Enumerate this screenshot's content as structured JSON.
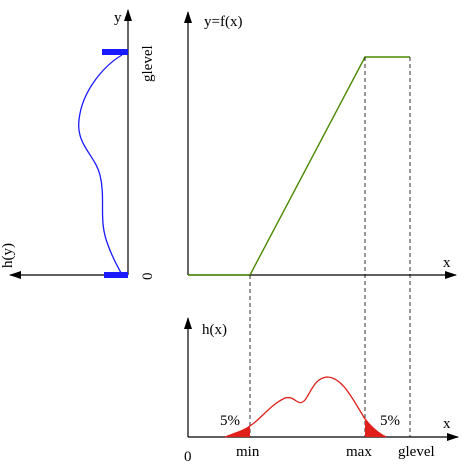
{
  "left_panel": {
    "axis_label_y": "y",
    "top_label": "glevel",
    "bottom_label": "0",
    "axis_label_h": "h(y)"
  },
  "top_panel": {
    "title": "y=f(x)",
    "axis_label_x": "x"
  },
  "bottom_panel": {
    "title": "h(x)",
    "axis_label_x": "x",
    "origin_label": "0",
    "left_percent": "5%",
    "right_percent": "5%",
    "min_label": "min",
    "max_label": "max",
    "glevel_label": "glevel"
  }
}
